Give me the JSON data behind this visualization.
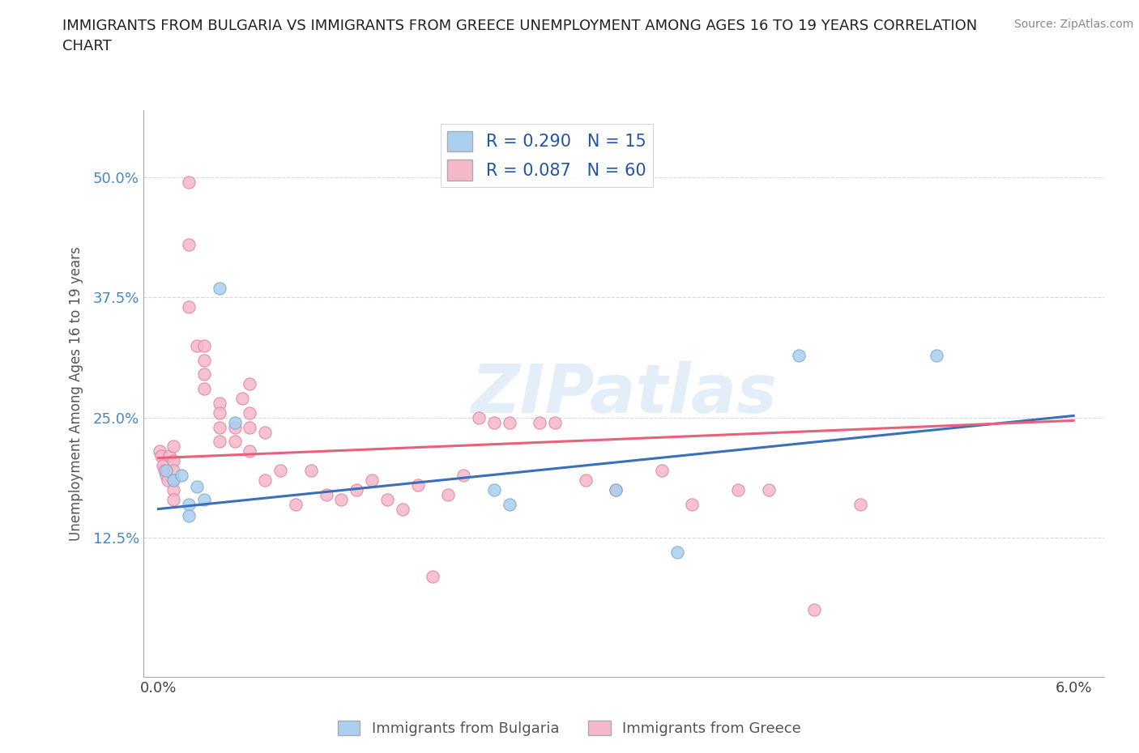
{
  "title": "IMMIGRANTS FROM BULGARIA VS IMMIGRANTS FROM GREECE UNEMPLOYMENT AMONG AGES 16 TO 19 YEARS CORRELATION\nCHART",
  "source_text": "Source: ZipAtlas.com",
  "ylabel": "Unemployment Among Ages 16 to 19 years",
  "xlim": [
    -0.001,
    0.062
  ],
  "ylim": [
    -0.02,
    0.57
  ],
  "xticks": [
    0.0,
    0.01,
    0.02,
    0.03,
    0.04,
    0.05,
    0.06
  ],
  "xticklabels": [
    "0.0%",
    "",
    "",
    "",
    "",
    "",
    "6.0%"
  ],
  "yticks": [
    0.0,
    0.125,
    0.25,
    0.375,
    0.5
  ],
  "yticklabels": [
    "",
    "12.5%",
    "25.0%",
    "37.5%",
    "50.0%"
  ],
  "bg_color": "#ffffff",
  "grid_color": "#d8d8d8",
  "bulgaria_color": "#aacfee",
  "bulgaria_edge": "#7aaad0",
  "greece_color": "#f5b8c8",
  "greece_edge": "#e080a0",
  "bulgaria_line_color": "#3a6fbb",
  "greece_line_color": "#e8607a",
  "R_bulgaria": 0.29,
  "N_bulgaria": 15,
  "R_greece": 0.087,
  "N_greece": 60,
  "bulgaria_trendline": [
    0.0,
    0.155,
    0.06,
    0.252
  ],
  "greece_trendline": [
    0.0,
    0.208,
    0.06,
    0.247
  ],
  "bulgaria_points": [
    [
      0.0005,
      0.195
    ],
    [
      0.001,
      0.185
    ],
    [
      0.0015,
      0.19
    ],
    [
      0.002,
      0.16
    ],
    [
      0.002,
      0.148
    ],
    [
      0.0025,
      0.178
    ],
    [
      0.003,
      0.165
    ],
    [
      0.004,
      0.385
    ],
    [
      0.005,
      0.245
    ],
    [
      0.022,
      0.175
    ],
    [
      0.023,
      0.16
    ],
    [
      0.03,
      0.175
    ],
    [
      0.034,
      0.11
    ],
    [
      0.042,
      0.315
    ],
    [
      0.051,
      0.315
    ]
  ],
  "greece_points": [
    [
      0.0001,
      0.215
    ],
    [
      0.0002,
      0.21
    ],
    [
      0.0003,
      0.2
    ],
    [
      0.0004,
      0.195
    ],
    [
      0.0005,
      0.19
    ],
    [
      0.0006,
      0.185
    ],
    [
      0.0007,
      0.21
    ],
    [
      0.001,
      0.22
    ],
    [
      0.001,
      0.205
    ],
    [
      0.001,
      0.195
    ],
    [
      0.001,
      0.185
    ],
    [
      0.001,
      0.175
    ],
    [
      0.001,
      0.165
    ],
    [
      0.002,
      0.495
    ],
    [
      0.002,
      0.43
    ],
    [
      0.002,
      0.365
    ],
    [
      0.0025,
      0.325
    ],
    [
      0.003,
      0.325
    ],
    [
      0.003,
      0.31
    ],
    [
      0.003,
      0.295
    ],
    [
      0.003,
      0.28
    ],
    [
      0.004,
      0.265
    ],
    [
      0.004,
      0.255
    ],
    [
      0.004,
      0.24
    ],
    [
      0.004,
      0.225
    ],
    [
      0.005,
      0.24
    ],
    [
      0.005,
      0.225
    ],
    [
      0.0055,
      0.27
    ],
    [
      0.006,
      0.285
    ],
    [
      0.006,
      0.255
    ],
    [
      0.006,
      0.24
    ],
    [
      0.006,
      0.215
    ],
    [
      0.007,
      0.235
    ],
    [
      0.007,
      0.185
    ],
    [
      0.008,
      0.195
    ],
    [
      0.009,
      0.16
    ],
    [
      0.01,
      0.195
    ],
    [
      0.011,
      0.17
    ],
    [
      0.012,
      0.165
    ],
    [
      0.013,
      0.175
    ],
    [
      0.014,
      0.185
    ],
    [
      0.015,
      0.165
    ],
    [
      0.016,
      0.155
    ],
    [
      0.017,
      0.18
    ],
    [
      0.018,
      0.085
    ],
    [
      0.019,
      0.17
    ],
    [
      0.02,
      0.19
    ],
    [
      0.021,
      0.25
    ],
    [
      0.022,
      0.245
    ],
    [
      0.023,
      0.245
    ],
    [
      0.025,
      0.245
    ],
    [
      0.026,
      0.245
    ],
    [
      0.028,
      0.185
    ],
    [
      0.03,
      0.175
    ],
    [
      0.033,
      0.195
    ],
    [
      0.035,
      0.16
    ],
    [
      0.038,
      0.175
    ],
    [
      0.04,
      0.175
    ],
    [
      0.043,
      0.05
    ],
    [
      0.046,
      0.16
    ]
  ]
}
